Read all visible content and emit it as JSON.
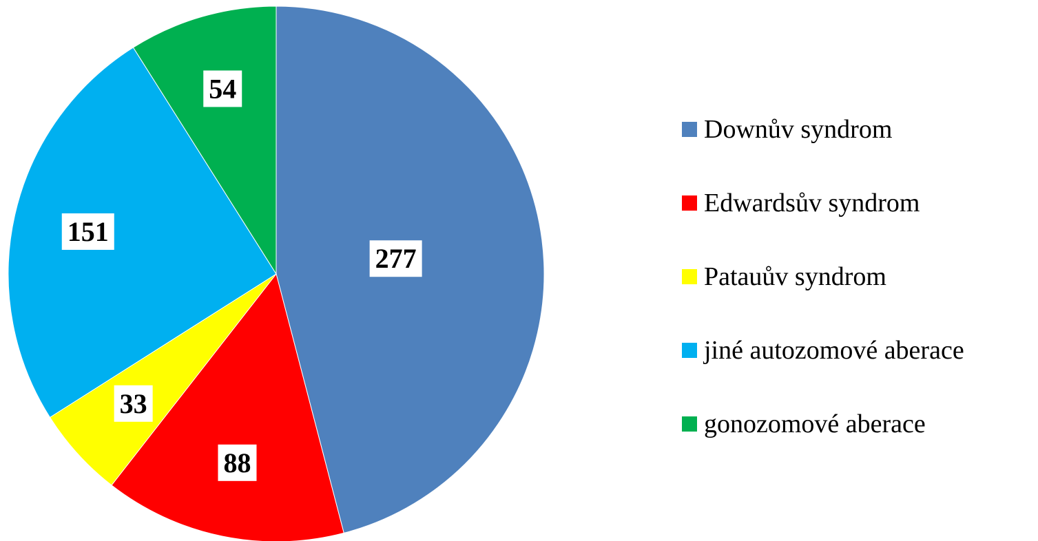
{
  "chart_data": {
    "type": "pie",
    "categories": [
      "Downův syndrom",
      "Edwardsův syndrom",
      "Patauův syndrom",
      "jiné autozomové aberace",
      "gonozomové aberace"
    ],
    "values": [
      277,
      88,
      33,
      151,
      54
    ],
    "colors": [
      "#4f81bd",
      "#ff0000",
      "#ffff00",
      "#00b0f0",
      "#00b050"
    ],
    "legend": "right"
  }
}
